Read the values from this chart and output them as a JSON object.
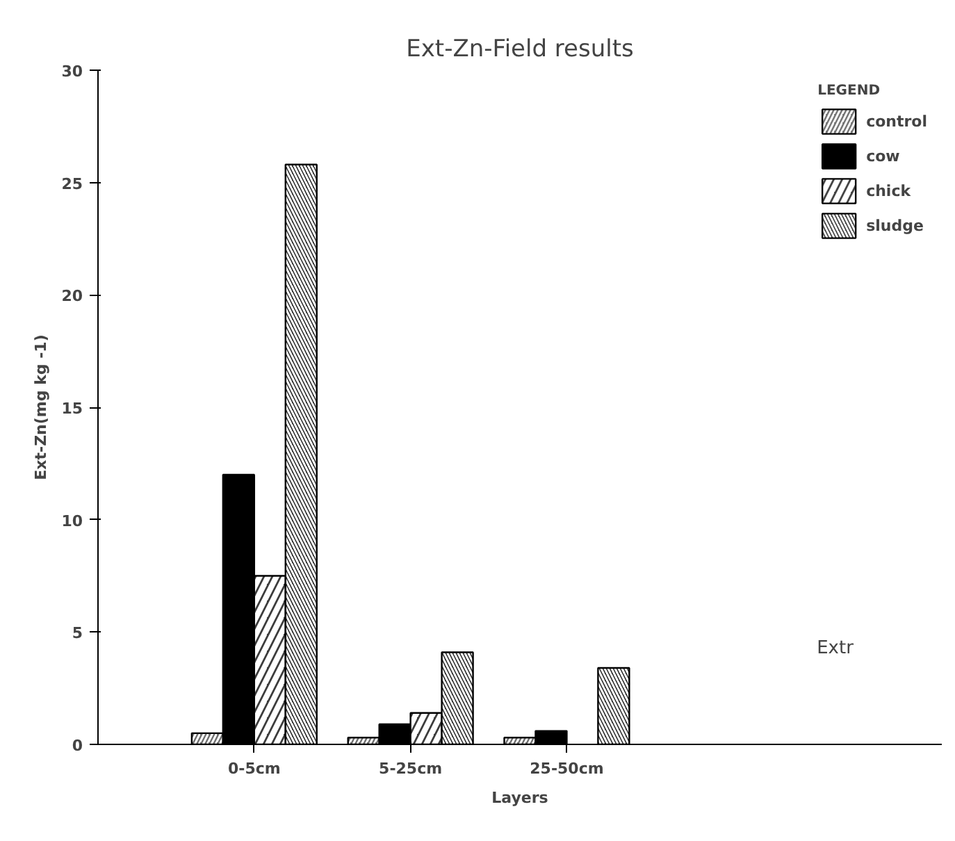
{
  "chart_data": {
    "type": "bar",
    "title": "Ext-Zn-Field results",
    "xlabel": "Layers",
    "ylabel": "Ext-Zn(mg kg -1)",
    "categories": [
      "0-5cm",
      "5-25cm",
      "25-50cm"
    ],
    "series": [
      {
        "name": "control",
        "color": "#6e6e6e",
        "values": [
          0.5,
          0.3,
          0.3
        ]
      },
      {
        "name": "cow",
        "color": "#000000",
        "values": [
          12.0,
          0.9,
          0.6
        ]
      },
      {
        "name": "chick",
        "color": "#3c3c3c",
        "values": [
          7.5,
          1.4,
          null
        ]
      },
      {
        "name": "sludge",
        "color": "#262626",
        "values": [
          25.8,
          4.1,
          3.4
        ]
      }
    ],
    "ylim": [
      0,
      30
    ],
    "yticks": [
      0,
      5,
      10,
      15,
      20,
      25,
      30
    ],
    "grid": false,
    "legend": "top right",
    "legend_title": "LEGEND",
    "annotations": [
      "Extr"
    ]
  }
}
